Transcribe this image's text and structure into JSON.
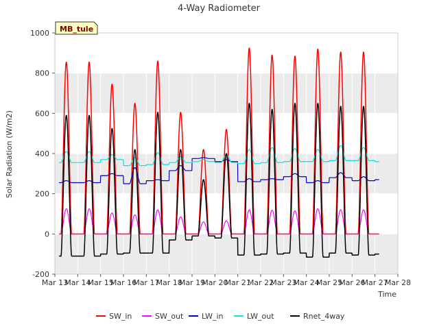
{
  "chart_data": {
    "type": "line",
    "title": "4-Way Radiometer",
    "xlabel": "Time",
    "ylabel": "Solar Radiation (W/m2)",
    "station_label": "MB_tule",
    "xlim": [
      13,
      28
    ],
    "ylim": [
      -200,
      1000
    ],
    "x_ticks": [
      13,
      14,
      15,
      16,
      17,
      18,
      19,
      20,
      21,
      22,
      23,
      24,
      25,
      26,
      27,
      28
    ],
    "x_tick_labels": [
      "Mar 13",
      "Mar 14",
      "Mar 15",
      "Mar 16",
      "Mar 17",
      "Mar 18",
      "Mar 19",
      "Mar 20",
      "Mar 21",
      "Mar 22",
      "Mar 23",
      "Mar 24",
      "Mar 25",
      "Mar 26",
      "Mar 27",
      "Mar 28"
    ],
    "y_ticks": [
      -200,
      0,
      200,
      400,
      600,
      800,
      1000
    ],
    "y_tick_labels": [
      "-200",
      "0",
      "200",
      "400",
      "600",
      "800",
      "1000"
    ],
    "grid": true,
    "bands": [
      [
        -200,
        0
      ],
      [
        200,
        400
      ],
      [
        600,
        800
      ]
    ],
    "band_color": "#ebebeb",
    "legend_position": "bottom",
    "day_start": 13,
    "days": [
      14,
      15,
      16,
      17,
      18,
      19,
      20,
      21,
      22,
      23,
      24,
      25,
      26,
      27
    ],
    "series": [
      {
        "name": "SW_in",
        "color": "#ff0000",
        "width": 1.5,
        "peaks": [
          855,
          745,
          650,
          860,
          605,
          420,
          520,
          925,
          890,
          885,
          920,
          905,
          905,
          925
        ],
        "night": [
          0,
          0,
          0,
          0,
          0,
          0,
          0,
          0,
          0,
          0,
          0,
          0,
          0,
          0
        ]
      },
      {
        "name": "SW_out",
        "color": "#ff00ff",
        "width": 1.2,
        "peaks": [
          125,
          105,
          95,
          120,
          85,
          60,
          65,
          120,
          118,
          115,
          125,
          120,
          120,
          125
        ],
        "night": [
          0,
          0,
          0,
          0,
          0,
          0,
          0,
          0,
          0,
          0,
          0,
          0,
          0,
          0
        ]
      },
      {
        "name": "LW_in",
        "color": "#0000cc",
        "width": 1.2,
        "peaks": [
          265,
          300,
          330,
          270,
          340,
          380,
          370,
          275,
          275,
          300,
          265,
          305,
          285,
          285
        ],
        "night": [
          255,
          290,
          250,
          265,
          315,
          375,
          360,
          260,
          270,
          285,
          255,
          280,
          265,
          270
        ]
      },
      {
        "name": "LW_out",
        "color": "#00e5e5",
        "width": 1.2,
        "peaks": [
          410,
          395,
          380,
          405,
          385,
          370,
          395,
          420,
          430,
          425,
          420,
          440,
          430,
          435
        ],
        "night": [
          355,
          370,
          340,
          345,
          355,
          360,
          355,
          350,
          355,
          360,
          360,
          365,
          365,
          360
        ]
      },
      {
        "name": "Rnet_4way",
        "color": "#000000",
        "width": 1.5,
        "peaks": [
          590,
          525,
          420,
          605,
          420,
          270,
          400,
          650,
          620,
          650,
          650,
          635,
          635,
          650
        ],
        "night": [
          -110,
          -100,
          -95,
          -95,
          -30,
          -10,
          -20,
          -105,
          -100,
          -95,
          -115,
          -95,
          -105,
          -100
        ]
      }
    ]
  }
}
